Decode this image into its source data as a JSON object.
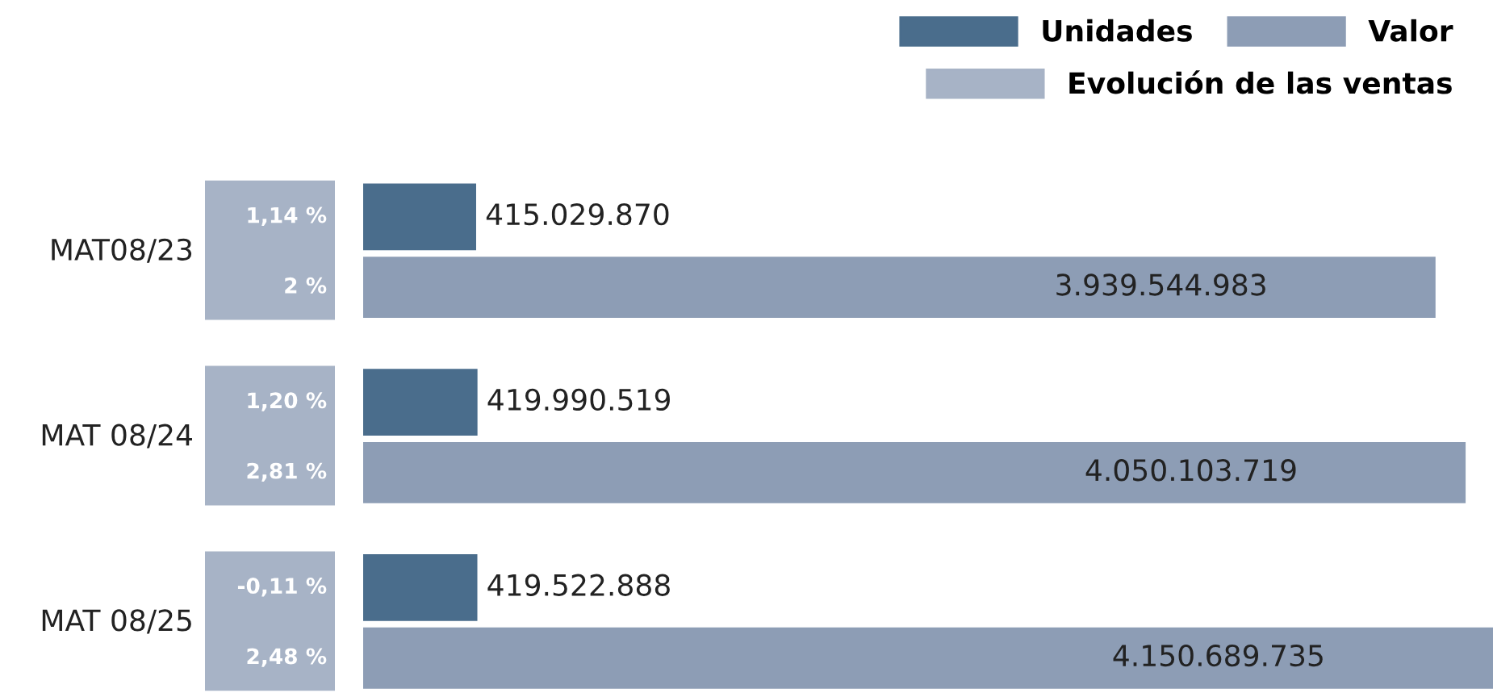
{
  "chart_data": {
    "type": "bar",
    "orientation": "horizontal",
    "categories": [
      "MAT08/23",
      "MAT 08/24",
      "MAT 08/25"
    ],
    "series": [
      {
        "name": "Unidades",
        "color": "#4a6d8c",
        "values": [
          415029870,
          419990519,
          419522888
        ],
        "value_labels": [
          "415.029.870",
          "419.990.519",
          "419.522.888"
        ]
      },
      {
        "name": "Valor",
        "color": "#8d9db5",
        "values": [
          3939544983,
          4050103719,
          4150689735
        ],
        "value_labels": [
          "3.939.544.983",
          "4.050.103.719",
          "4.150.689.735"
        ]
      },
      {
        "name": "Evolución de las ventas",
        "color": "#a7b3c6",
        "values": [
          null,
          null,
          null
        ]
      }
    ],
    "annotations": [
      "1,14 %",
      "2 %",
      "1,20 %",
      "2,81 %",
      "-0,11 %",
      "2,48 %"
    ],
    "legend": "top right"
  }
}
